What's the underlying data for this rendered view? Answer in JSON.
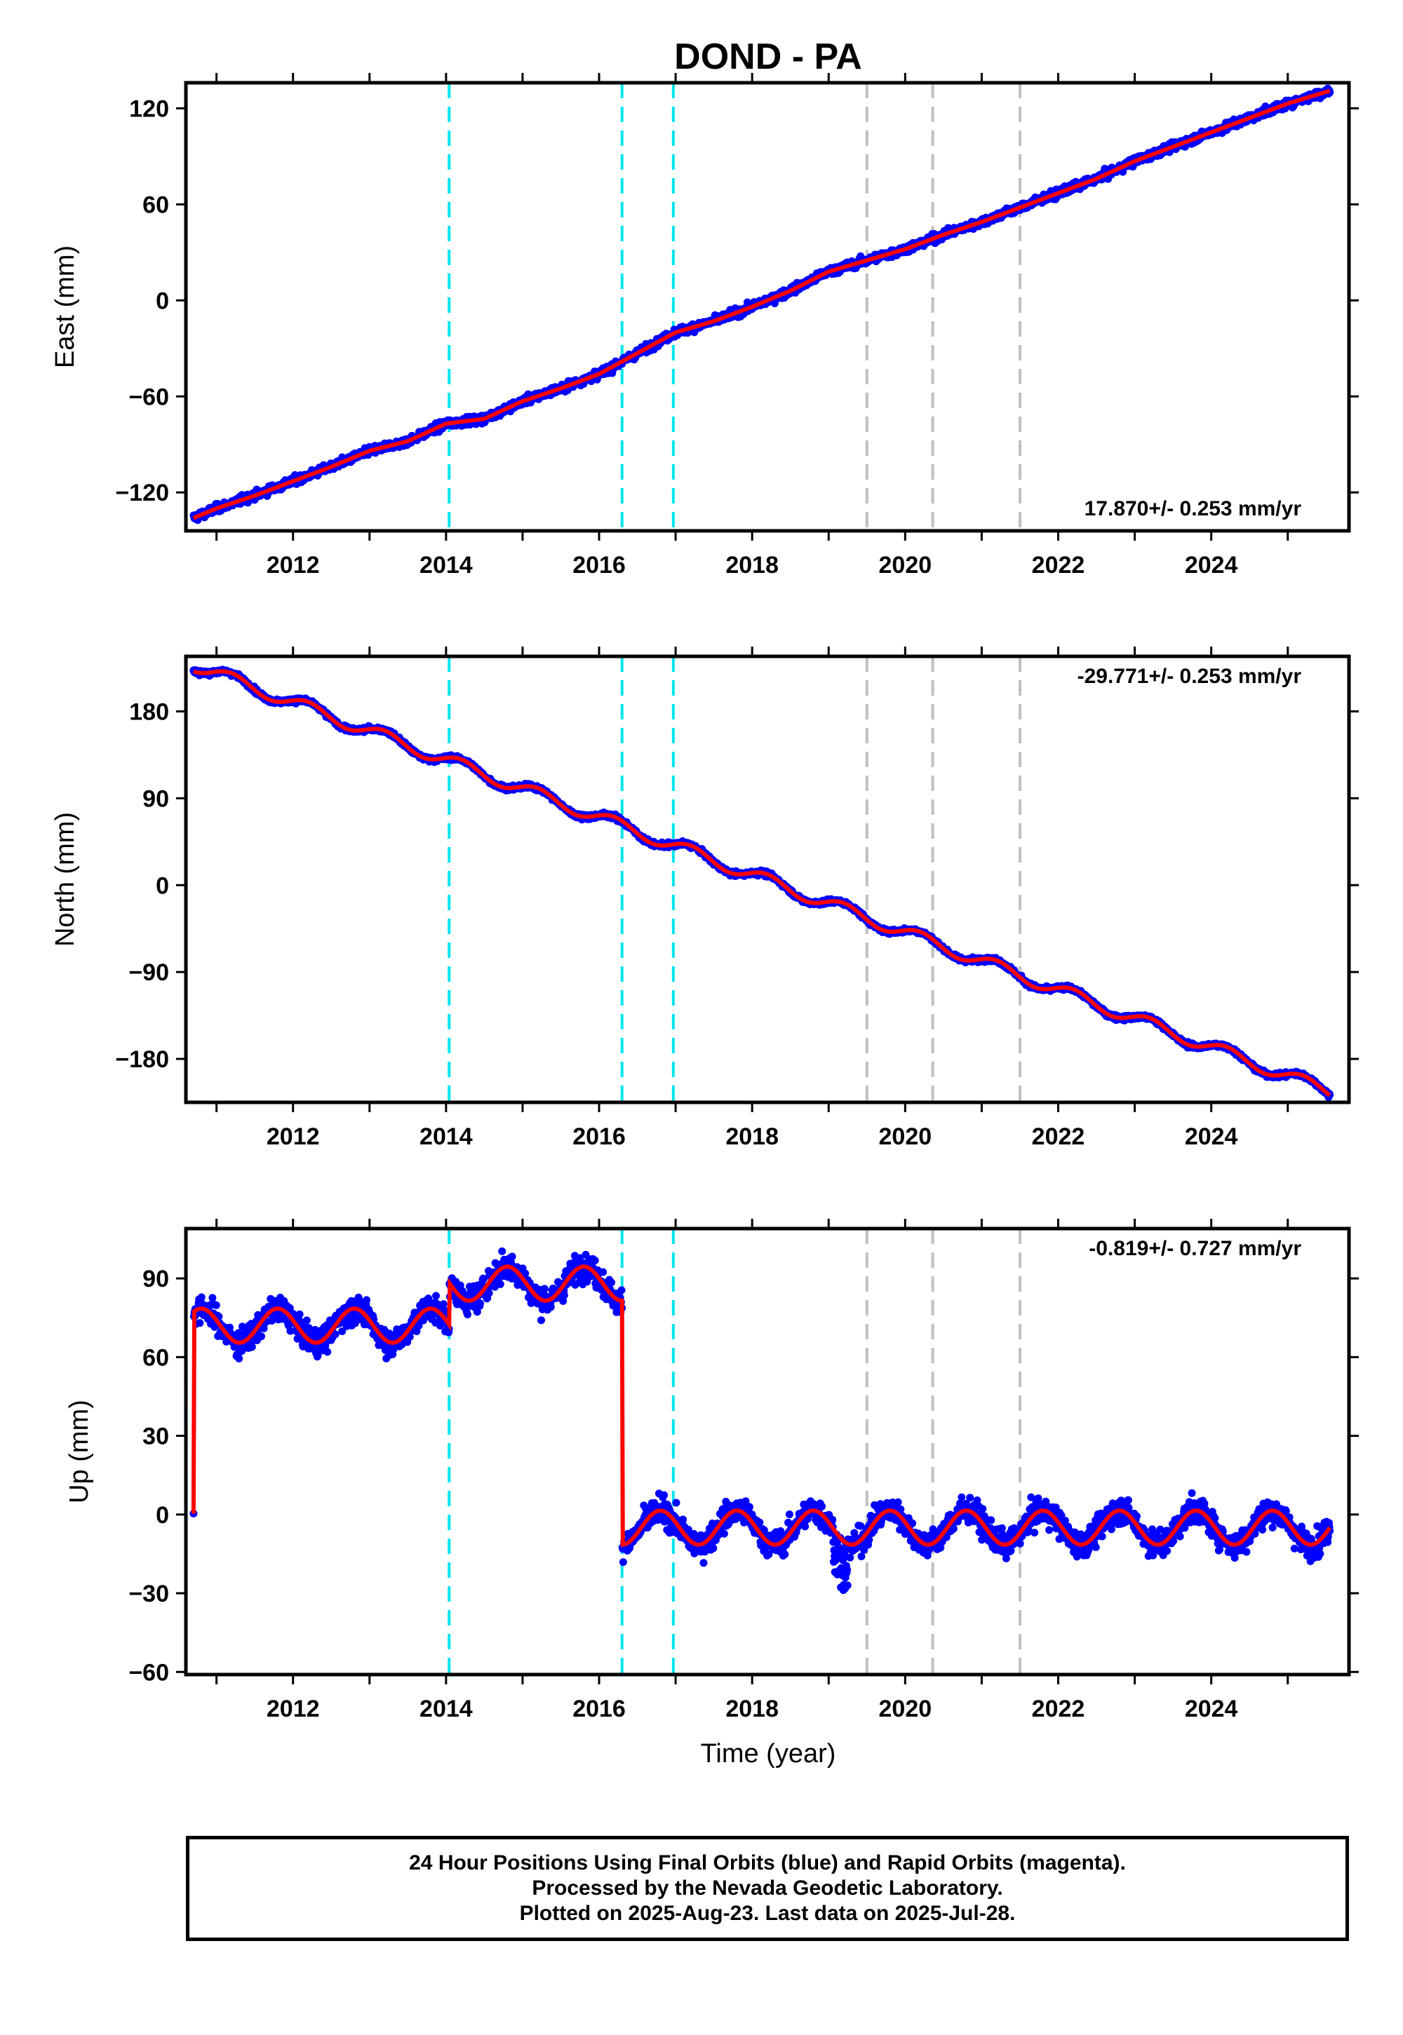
{
  "title": "DOND - PA",
  "xlabel": "Time (year)",
  "footer": {
    "line1": "24 Hour Positions Using Final Orbits (blue) and Rapid Orbits (magenta).",
    "line2": "Processed by the Nevada Geodetic Laboratory.",
    "line3": "Plotted on 2025-Aug-23. Last data on 2025-Jul-28."
  },
  "colors": {
    "data_points": "#0000ff",
    "model": "#ff0000",
    "equipment_change": "#00e5ee",
    "other_event": "#c0c0c0",
    "frame": "#000000"
  },
  "chart_data": [
    {
      "type": "scatter",
      "ylabel": "East (mm)",
      "xlim": [
        2010.6,
        2025.8
      ],
      "ylim": [
        -144,
        136
      ],
      "xticks": [
        2012,
        2014,
        2016,
        2018,
        2020,
        2022,
        2024
      ],
      "yticks": [
        -120,
        -60,
        0,
        60,
        120
      ],
      "ytick_labels": [
        "−120",
        "−60",
        "0",
        "60",
        "120"
      ],
      "rate_label": "17.870+/- 0.253 mm/yr",
      "rate_position": "bottom-right",
      "model_samples": [
        {
          "x": 2010.7,
          "y": -136
        },
        {
          "x": 2011.0,
          "y": -130
        },
        {
          "x": 2011.5,
          "y": -122
        },
        {
          "x": 2012.0,
          "y": -113
        },
        {
          "x": 2012.5,
          "y": -104
        },
        {
          "x": 2013.0,
          "y": -94
        },
        {
          "x": 2013.5,
          "y": -88
        },
        {
          "x": 2014.0,
          "y": -77
        },
        {
          "x": 2014.5,
          "y": -74
        },
        {
          "x": 2015.0,
          "y": -63
        },
        {
          "x": 2015.5,
          "y": -55
        },
        {
          "x": 2016.0,
          "y": -46
        },
        {
          "x": 2016.5,
          "y": -33
        },
        {
          "x": 2017.0,
          "y": -20
        },
        {
          "x": 2017.5,
          "y": -13
        },
        {
          "x": 2018.0,
          "y": -4
        },
        {
          "x": 2018.5,
          "y": 6
        },
        {
          "x": 2019.0,
          "y": 18
        },
        {
          "x": 2019.5,
          "y": 25
        },
        {
          "x": 2020.0,
          "y": 32
        },
        {
          "x": 2020.5,
          "y": 41
        },
        {
          "x": 2021.0,
          "y": 49
        },
        {
          "x": 2021.5,
          "y": 58
        },
        {
          "x": 2022.0,
          "y": 67
        },
        {
          "x": 2022.5,
          "y": 76
        },
        {
          "x": 2023.0,
          "y": 87
        },
        {
          "x": 2023.5,
          "y": 96
        },
        {
          "x": 2024.0,
          "y": 105
        },
        {
          "x": 2024.5,
          "y": 114
        },
        {
          "x": 2025.0,
          "y": 123
        },
        {
          "x": 2025.55,
          "y": 131
        }
      ],
      "noise_mm": 2.5
    },
    {
      "type": "scatter",
      "ylabel": "North (mm)",
      "xlim": [
        2010.6,
        2025.8
      ],
      "ylim": [
        -225,
        237
      ],
      "xticks": [
        2012,
        2014,
        2016,
        2018,
        2020,
        2022,
        2024
      ],
      "yticks": [
        -180,
        -90,
        0,
        90,
        180
      ],
      "ytick_labels": [
        "−180",
        "−90",
        "0",
        "90",
        "180"
      ],
      "rate_label": "-29.771+/- 0.253 mm/yr",
      "rate_position": "top-right",
      "trend": {
        "x0": 2010.7,
        "y0": 228,
        "slope": -29.77
      },
      "seasonal_amplitude": 6.5,
      "noise_mm": 2.5
    },
    {
      "type": "scatter",
      "ylabel": "Up (mm)",
      "xlim": [
        2010.6,
        2025.8
      ],
      "ylim": [
        -61,
        109
      ],
      "xticks": [
        2012,
        2014,
        2016,
        2018,
        2020,
        2022,
        2024
      ],
      "yticks": [
        -60,
        -30,
        0,
        30,
        60,
        90
      ],
      "ytick_labels": [
        "−60",
        "−30",
        "0",
        "30",
        "60",
        "90"
      ],
      "rate_label": "-0.819+/- 0.727 mm/yr",
      "rate_position": "top-right",
      "offset_segments": [
        {
          "start": 2010.7,
          "end": 2014.04,
          "mean": 72
        },
        {
          "start": 2014.04,
          "end": 2016.3,
          "mean": 88
        },
        {
          "start": 2016.3,
          "end": 2025.55,
          "mean": -5
        }
      ],
      "seasonal_amplitude": 6.5,
      "noise_mm": 5
    }
  ],
  "event_lines": {
    "equipment": [
      2014.04,
      2016.3,
      2016.97
    ],
    "other": [
      2019.5,
      2020.36,
      2021.5
    ]
  }
}
